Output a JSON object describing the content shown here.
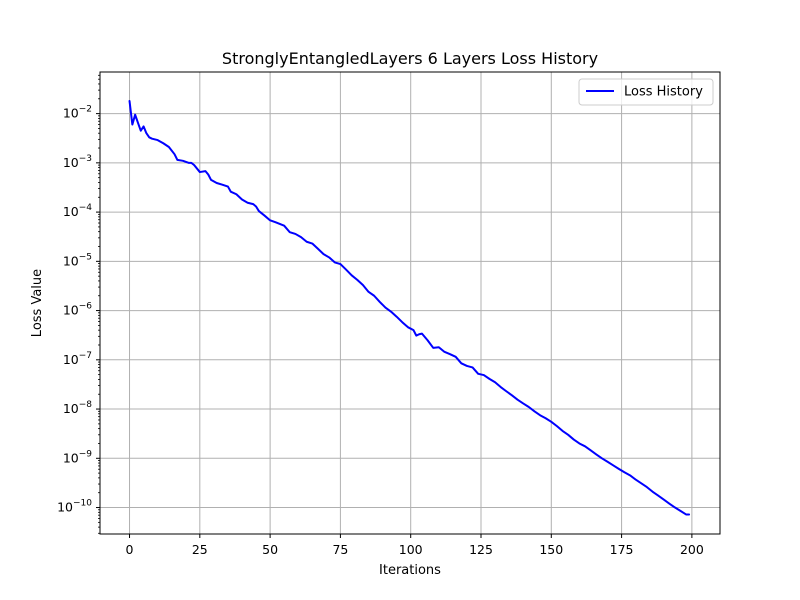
{
  "chart_data": {
    "type": "line",
    "title": "StronglyEntangledLayers 6 Layers Loss History",
    "xlabel": "Iterations",
    "ylabel": "Loss Value",
    "xscale": "linear",
    "yscale": "log",
    "xlim": [
      -10.5,
      210
    ],
    "ylim": [
      2.9e-11,
      0.07
    ],
    "grid": true,
    "legend_position": "upper-right",
    "xticks": [
      0,
      25,
      50,
      75,
      100,
      125,
      150,
      175,
      200
    ],
    "xtick_labels": [
      "0",
      "25",
      "50",
      "75",
      "100",
      "125",
      "150",
      "175",
      "200"
    ],
    "yticks": [
      -10,
      -9,
      -8,
      -7,
      -6,
      -5,
      -4,
      -3,
      -2
    ],
    "series": [
      {
        "name": "Loss History",
        "color": "#0000ff",
        "points": [
          [
            0,
            0.018
          ],
          [
            1,
            0.006
          ],
          [
            2,
            0.0095
          ],
          [
            3,
            0.0065
          ],
          [
            4,
            0.0045
          ],
          [
            5,
            0.0055
          ],
          [
            6,
            0.004
          ],
          [
            7,
            0.0033
          ],
          [
            8,
            0.0031
          ],
          [
            10,
            0.0029
          ],
          [
            12,
            0.0025
          ],
          [
            14,
            0.0021
          ],
          [
            16,
            0.0015
          ],
          [
            17,
            0.00115
          ],
          [
            19,
            0.0011
          ],
          [
            21,
            0.001
          ],
          [
            22,
            0.001
          ],
          [
            23,
            0.0009
          ],
          [
            25,
            0.00065
          ],
          [
            27,
            0.00068
          ],
          [
            28,
            0.00058
          ],
          [
            29,
            0.00045
          ],
          [
            31,
            0.00039
          ],
          [
            33,
            0.00036
          ],
          [
            35,
            0.00033
          ],
          [
            36,
            0.00026
          ],
          [
            38,
            0.00023
          ],
          [
            40,
            0.00018
          ],
          [
            42,
            0.000155
          ],
          [
            44,
            0.000145
          ],
          [
            45,
            0.00013
          ],
          [
            46,
            0.000105
          ],
          [
            48,
            8.5e-05
          ],
          [
            50,
            6.8e-05
          ],
          [
            52,
            6.2e-05
          ],
          [
            55,
            5.3e-05
          ],
          [
            57,
            3.9e-05
          ],
          [
            59,
            3.6e-05
          ],
          [
            61,
            3.1e-05
          ],
          [
            63,
            2.5e-05
          ],
          [
            65,
            2.3e-05
          ],
          [
            67,
            1.8e-05
          ],
          [
            69,
            1.4e-05
          ],
          [
            71,
            1.2e-05
          ],
          [
            73,
            9.5e-06
          ],
          [
            75,
            8.8e-06
          ],
          [
            77,
            6.8e-06
          ],
          [
            79,
            5.2e-06
          ],
          [
            81,
            4.2e-06
          ],
          [
            83,
            3.3e-06
          ],
          [
            85,
            2.4e-06
          ],
          [
            87,
            2e-06
          ],
          [
            89,
            1.5e-06
          ],
          [
            91,
            1.15e-06
          ],
          [
            93,
            9.5e-07
          ],
          [
            95,
            7.5e-07
          ],
          [
            97,
            5.8e-07
          ],
          [
            99,
            4.6e-07
          ],
          [
            101,
            4e-07
          ],
          [
            102,
            3.1e-07
          ],
          [
            103,
            3.3e-07
          ],
          [
            104,
            3.4e-07
          ],
          [
            106,
            2.5e-07
          ],
          [
            108,
            1.75e-07
          ],
          [
            110,
            1.8e-07
          ],
          [
            112,
            1.45e-07
          ],
          [
            114,
            1.3e-07
          ],
          [
            116,
            1.15e-07
          ],
          [
            118,
            8.5e-08
          ],
          [
            120,
            7.5e-08
          ],
          [
            122,
            7e-08
          ],
          [
            124,
            5.2e-08
          ],
          [
            126,
            4.9e-08
          ],
          [
            128,
            4.1e-08
          ],
          [
            130,
            3.5e-08
          ],
          [
            132,
            2.8e-08
          ],
          [
            134,
            2.3e-08
          ],
          [
            136,
            1.9e-08
          ],
          [
            138,
            1.55e-08
          ],
          [
            140,
            1.3e-08
          ],
          [
            142,
            1.1e-08
          ],
          [
            144,
            9e-09
          ],
          [
            146,
            7.5e-09
          ],
          [
            148,
            6.5e-09
          ],
          [
            150,
            5.5e-09
          ],
          [
            152,
            4.5e-09
          ],
          [
            154,
            3.6e-09
          ],
          [
            156,
            3e-09
          ],
          [
            158,
            2.4e-09
          ],
          [
            160,
            2e-09
          ],
          [
            162,
            1.75e-09
          ],
          [
            164,
            1.45e-09
          ],
          [
            166,
            1.2e-09
          ],
          [
            168,
            1e-09
          ],
          [
            170,
            8.5e-10
          ],
          [
            172,
            7.2e-10
          ],
          [
            174,
            6.1e-10
          ],
          [
            176,
            5.2e-10
          ],
          [
            178,
            4.5e-10
          ],
          [
            180,
            3.7e-10
          ],
          [
            182,
            3.1e-10
          ],
          [
            184,
            2.6e-10
          ],
          [
            186,
            2.1e-10
          ],
          [
            188,
            1.75e-10
          ],
          [
            190,
            1.45e-10
          ],
          [
            192,
            1.2e-10
          ],
          [
            194,
            1e-10
          ],
          [
            196,
            8.5e-11
          ],
          [
            198,
            7.2e-11
          ],
          [
            199,
            7.2e-11
          ]
        ]
      }
    ]
  }
}
